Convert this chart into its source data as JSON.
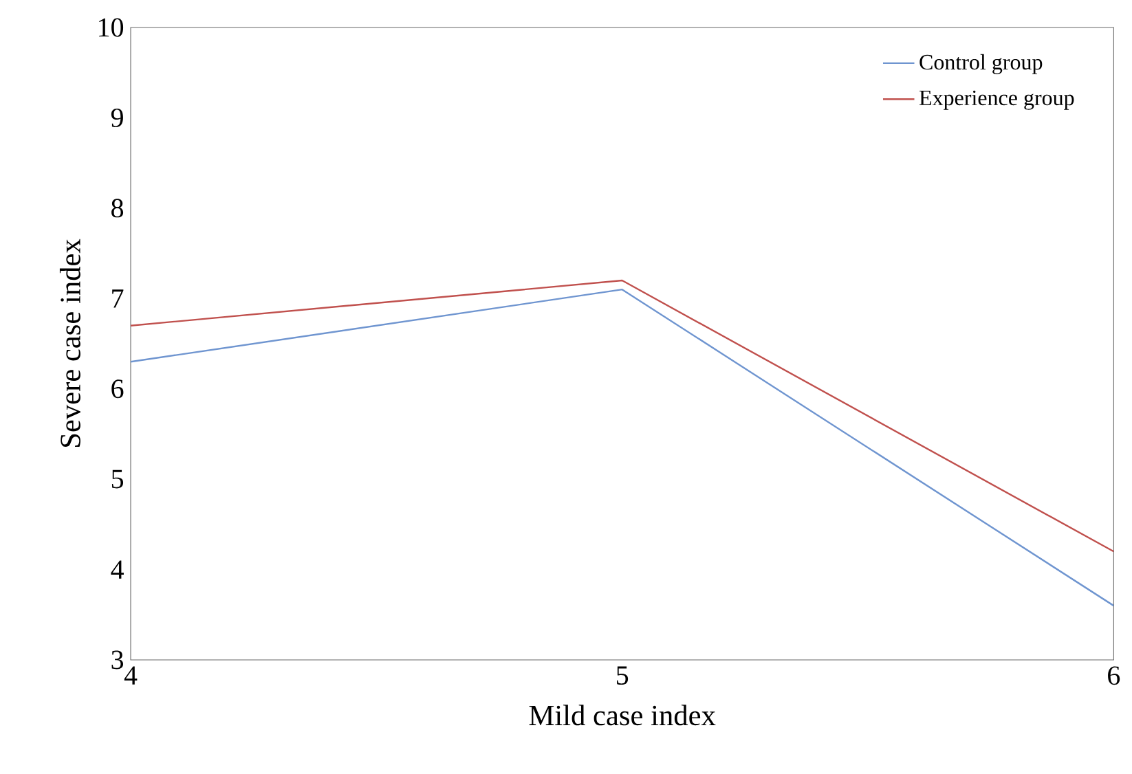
{
  "chart_data": {
    "type": "line",
    "xlabel": "Mild case index",
    "ylabel": "Severe case index",
    "x": [
      4,
      5,
      6
    ],
    "series": [
      {
        "name": "Control group",
        "color": "#6f95d0",
        "values": [
          6.3,
          7.1,
          3.6
        ]
      },
      {
        "name": "Experience group",
        "color": "#c0504d",
        "values": [
          6.7,
          7.2,
          4.2
        ]
      }
    ],
    "xlim": [
      4,
      6
    ],
    "ylim": [
      3,
      10
    ],
    "xticks": [
      4,
      5,
      6
    ],
    "yticks": [
      3,
      4,
      5,
      6,
      7,
      8,
      9,
      10
    ],
    "grid": false,
    "legend": "top right",
    "marker": "none",
    "line_style": "solid"
  }
}
